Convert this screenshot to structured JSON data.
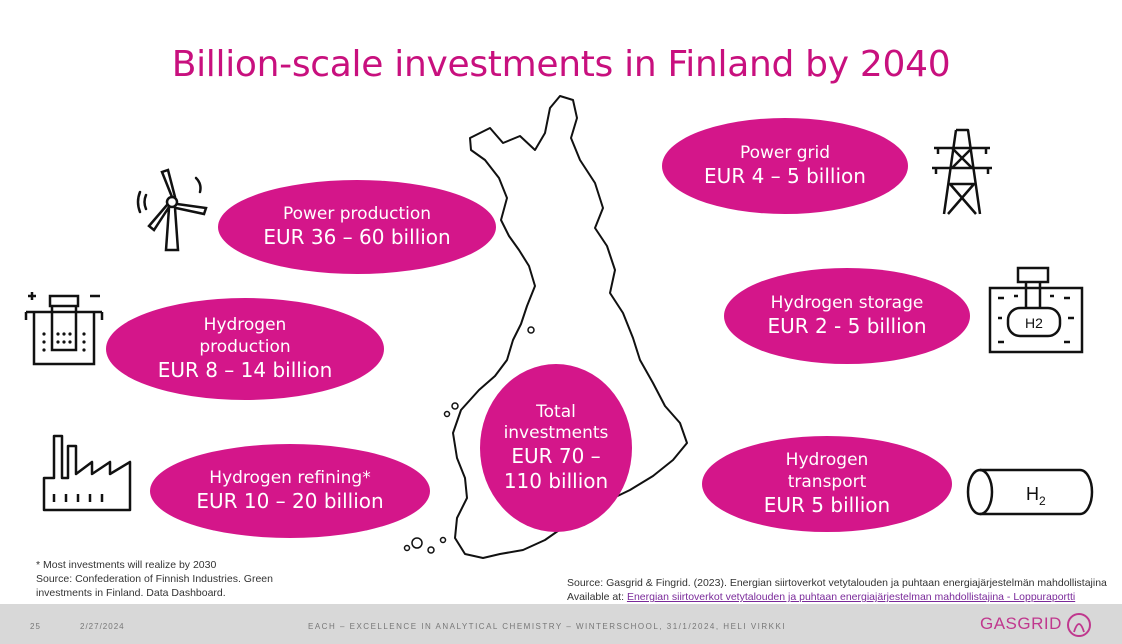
{
  "title": "Billion-scale investments in Finland by 2040",
  "bubbles": {
    "power_production": {
      "label": "Power production",
      "value": "EUR 36 – 60 billion"
    },
    "hydrogen_production": {
      "label1": "Hydrogen",
      "label2": "production",
      "value": "EUR 8 – 14 billion"
    },
    "hydrogen_refining": {
      "label": "Hydrogen refining*",
      "value": "EUR 10 – 20 billion"
    },
    "power_grid": {
      "label": "Power grid",
      "value": "EUR 4 – 5 billion"
    },
    "hydrogen_storage": {
      "label": "Hydrogen storage",
      "value": "EUR 2 - 5 billion"
    },
    "hydrogen_transport": {
      "label1": "Hydrogen",
      "label2": "transport",
      "value": "EUR 5 billion"
    },
    "total": {
      "label1": "Total",
      "label2": "investments",
      "value1": "EUR 70 –",
      "value2": "110 billion"
    }
  },
  "icons": {
    "storage_tank_label": "H2",
    "pipe_label": "H",
    "pipe_subscript": "2",
    "names": [
      "wind-turbine-icon",
      "electrolyzer-icon",
      "factory-icon",
      "power-pylon-icon",
      "hydrogen-storage-icon",
      "hydrogen-pipe-icon"
    ]
  },
  "notes": {
    "line1": "* Most investments will realize by 2030",
    "line2": "Source: Confederation of Finnish Industries. Green",
    "line3": "investments in Finland. Data Dashboard."
  },
  "source_right": {
    "line1": "Source: Gasgrid & Fingrid. (2023). Energian siirtoverkot vetytalouden ja puhtaan energiajärjestelmän mahdollistajina",
    "line2_prefix": "Available at: ",
    "link": "Energian siirtoverkot vetytalouden ja puhtaan energiajärjestelman mahdollistajina - Loppuraportti"
  },
  "footer": {
    "slide_number": "25",
    "date": "2/27/2024",
    "center_text": "EACH – EXCELLENCE IN ANALYTICAL CHEMISTRY – WINTERSCHOOL, 31/1/2024, HELI VIRKKI",
    "brand": "GASGRID"
  },
  "colors": {
    "accent": "#d4168a",
    "title": "#c8107e",
    "footer_bg": "#d8d8d8"
  }
}
